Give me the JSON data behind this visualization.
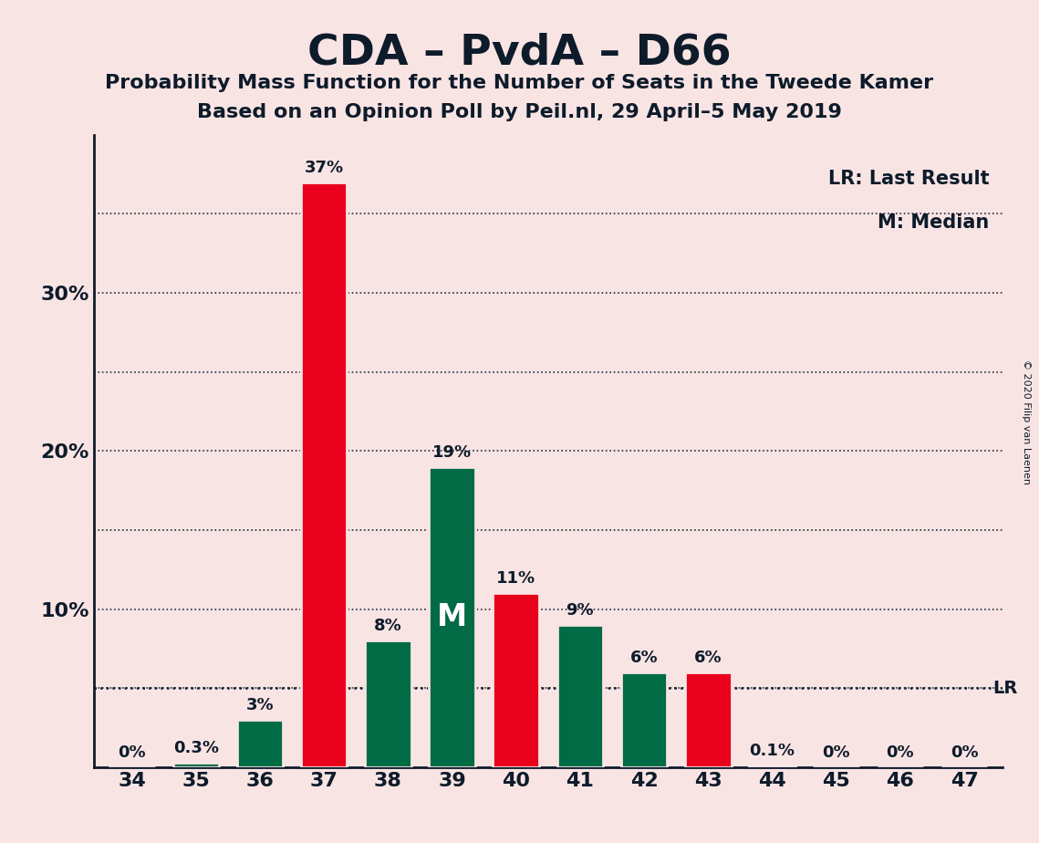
{
  "title": "CDA – PvdA – D66",
  "subtitle1": "Probability Mass Function for the Number of Seats in the Tweede Kamer",
  "subtitle2": "Based on an Opinion Poll by Peil.nl, 29 April–5 May 2019",
  "copyright": "© 2020 Filip van Laenen",
  "categories": [
    34,
    35,
    36,
    37,
    38,
    39,
    40,
    41,
    42,
    43,
    44,
    45,
    46,
    47
  ],
  "values": [
    0.0,
    0.3,
    3.0,
    37.0,
    8.0,
    19.0,
    11.0,
    9.0,
    6.0,
    6.0,
    0.1,
    0.0,
    0.0,
    0.0
  ],
  "labels": [
    "0%",
    "0.3%",
    "3%",
    "37%",
    "8%",
    "19%",
    "11%",
    "9%",
    "6%",
    "6%",
    "0.1%",
    "0%",
    "0%",
    "0%"
  ],
  "colors": [
    "#E8001C",
    "#006B45",
    "#006B45",
    "#E8001C",
    "#006B45",
    "#006B45",
    "#E8001C",
    "#006B45",
    "#006B45",
    "#E8001C",
    "#E8001C",
    "#E8001C",
    "#E8001C",
    "#E8001C"
  ],
  "median_bar_seat": 39,
  "lr_value": 5.0,
  "background_color": "#F9E4E4",
  "bar_edge_color": "#F9E4E4",
  "text_color": "#0D1B2A",
  "grid_color": "#0D1B2A",
  "legend_lr": "LR: Last Result",
  "legend_m": "M: Median",
  "ylim": [
    0,
    40
  ],
  "ytick_major": [
    10,
    20,
    30
  ],
  "ytick_major_labels": [
    "10%",
    "20%",
    "30%"
  ],
  "ytick_minor": [
    5,
    15,
    25,
    35
  ],
  "title_fontsize": 34,
  "subtitle_fontsize": 16,
  "label_fontsize": 13,
  "tick_fontsize": 16
}
